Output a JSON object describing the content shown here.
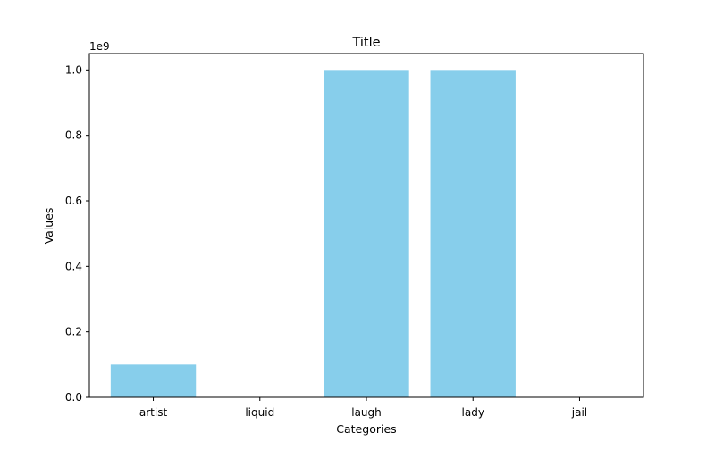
{
  "chart_data": {
    "type": "bar",
    "title": "Title",
    "xlabel": "Categories",
    "ylabel": "Values",
    "categories": [
      "artist",
      "liquid",
      "laugh",
      "lady",
      "jail"
    ],
    "values": [
      100000000,
      0,
      1000000000,
      1000000000,
      0
    ],
    "ylim": [
      0,
      1050000000
    ],
    "yticks": [
      0,
      200000000,
      400000000,
      600000000,
      800000000,
      1000000000
    ],
    "ytick_labels": [
      "0.0",
      "0.2",
      "0.4",
      "0.6",
      "0.8",
      "1.0"
    ],
    "y_offset_label": "1e9",
    "bar_color": "#87ceeb",
    "grid": false,
    "legend": "none"
  }
}
